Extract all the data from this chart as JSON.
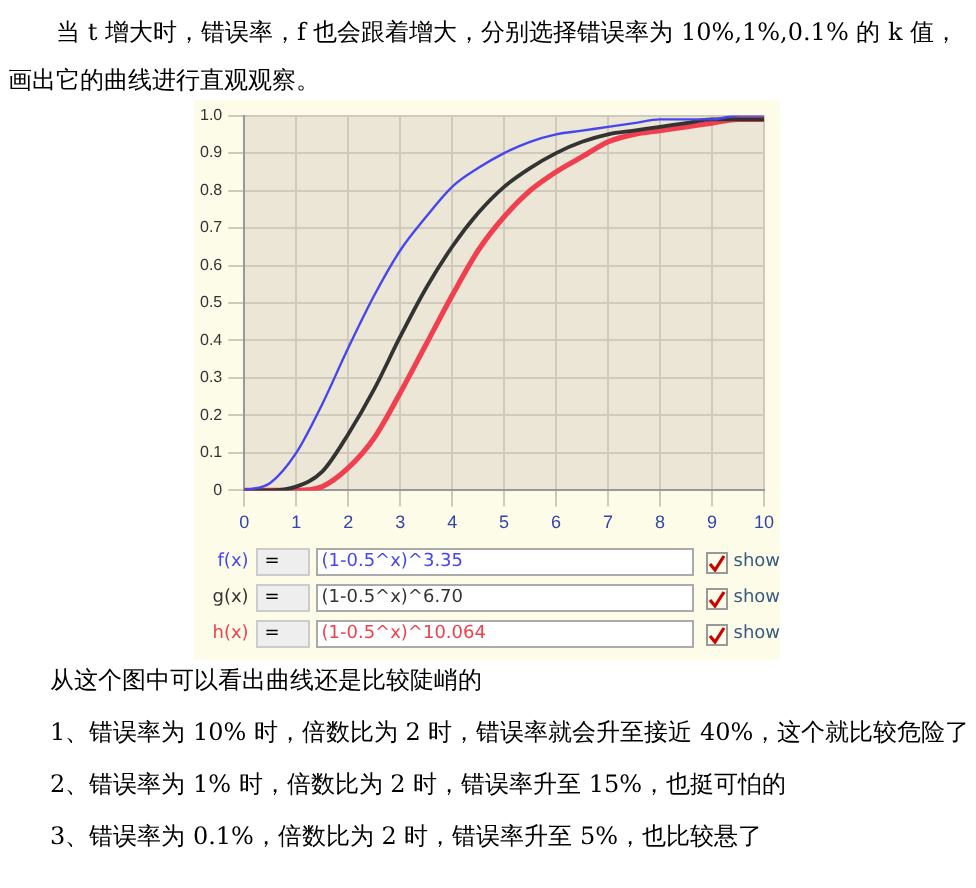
{
  "chart_data": {
    "type": "line",
    "title": "当 t 增大时，错误率，f 也会跟着增大，分别选择错误率为 10%,1%,0.1% 的 k 值，画出它的曲线进行直观观察。",
    "x": [
      0,
      0.5,
      1,
      1.5,
      2,
      2.5,
      3,
      3.5,
      4,
      4.5,
      5,
      5.5,
      6,
      6.5,
      7,
      7.5,
      8,
      8.5,
      9,
      9.5,
      10
    ],
    "series": [
      {
        "name": "f(x)",
        "color": "#4646f0",
        "values": [
          0,
          0.02,
          0.1,
          0.23,
          0.38,
          0.52,
          0.64,
          0.73,
          0.81,
          0.86,
          0.9,
          0.93,
          0.95,
          0.96,
          0.97,
          0.98,
          0.99,
          0.99,
          0.99,
          1,
          1
        ]
      },
      {
        "name": "g(x)",
        "color": "#333333",
        "values": [
          0,
          0,
          0.01,
          0.05,
          0.15,
          0.27,
          0.41,
          0.54,
          0.65,
          0.74,
          0.81,
          0.86,
          0.9,
          0.93,
          0.95,
          0.96,
          0.97,
          0.98,
          0.99,
          0.99,
          0.99
        ]
      },
      {
        "name": "h(x)",
        "color": "#f04050",
        "values": [
          0,
          0,
          0,
          0.01,
          0.06,
          0.14,
          0.26,
          0.39,
          0.52,
          0.64,
          0.73,
          0.8,
          0.85,
          0.89,
          0.93,
          0.95,
          0.96,
          0.97,
          0.98,
          0.99,
          0.99
        ]
      }
    ],
    "xlim": [
      0,
      10
    ],
    "xticks": [
      0,
      1,
      2,
      3,
      4,
      5,
      6,
      7,
      8,
      9,
      10
    ],
    "ylim": [
      0,
      1
    ],
    "yticks": [
      0,
      0.1,
      0.2,
      0.3,
      0.4,
      0.5,
      0.6,
      0.7,
      0.8,
      0.9,
      {
        "value": 1,
        "label": "1.0"
      }
    ],
    "grid": true,
    "legend": "bottom",
    "marker": "none",
    "line_style": "solid",
    "annotations": [
      "从这个图中可以看出曲线还是比较陡峭的",
      "1、错误率为 10% 时，倍数比为 2 时，错误率就会升至接近 40%，这个就比较危险了",
      "2、错误率为 1% 时，倍数比为 2 时，错误率升至 15%，也挺可怕的",
      "3、错误率为 0.1%，倍数比为 2 时，错误率升至 5%，也比较悬了",
      "(1-0.5^x)^3.35",
      "(1-0.5^x)^6.70",
      "(1-0.5^x)^10.064",
      "=",
      "show"
    ]
  }
}
